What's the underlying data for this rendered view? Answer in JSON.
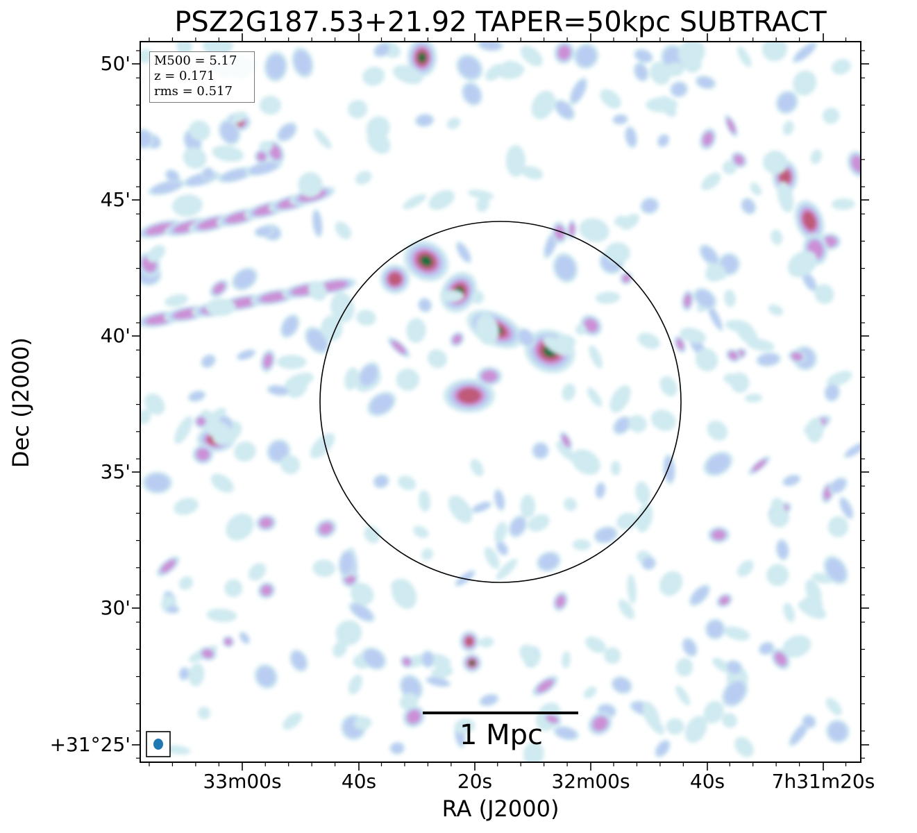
{
  "title": "PSZ2G187.53+21.92 TAPER=50kpc SUBTRACT",
  "xaxis": {
    "label": "RA (J2000)",
    "ticks": [
      "33m00s",
      "40s",
      "20s",
      "32m00s",
      "40s",
      "7h31m20s"
    ]
  },
  "yaxis": {
    "label": "Dec (J2000)",
    "ticks": [
      "50'",
      "45'",
      "40'",
      "35'",
      "30'",
      "+31°25'"
    ]
  },
  "info": {
    "m500": "M500 = 5.17",
    "z": "z = 0.171",
    "rms": "rms = 0.517"
  },
  "scalebar": {
    "label": "1 Mpc"
  },
  "colors": {
    "faint": "#cfeaf0",
    "low": "#b9cdf2",
    "mid": "#cc8fd6",
    "high": "#bf5a78",
    "peak": "#1f6e3c",
    "beam": "#1f77b4"
  }
}
